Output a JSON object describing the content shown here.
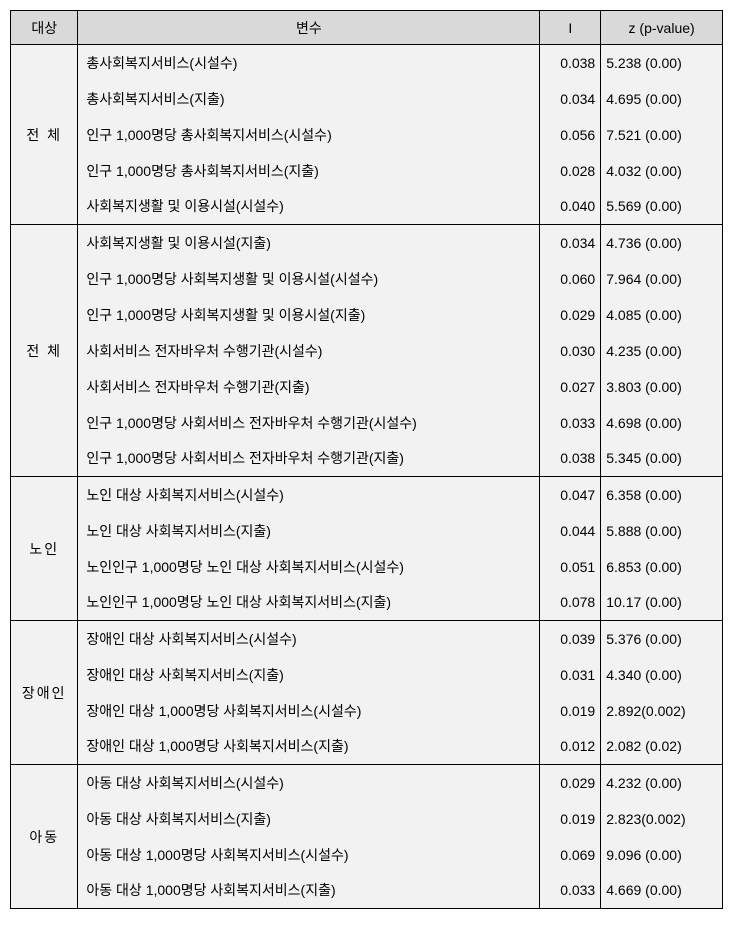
{
  "headers": {
    "target": "대상",
    "variable": "변수",
    "i": "I",
    "z": "z (p-value)"
  },
  "groups": [
    {
      "target": "전 체",
      "rows": [
        {
          "variable": "총사회복지서비스(시설수)",
          "i": "0.038",
          "z": "5.238 (0.00)"
        },
        {
          "variable": "총사회복지서비스(지출)",
          "i": "0.034",
          "z": "4.695 (0.00)"
        },
        {
          "variable": "인구 1,000명당 총사회복지서비스(시설수)",
          "i": "0.056",
          "z": "7.521 (0.00)"
        },
        {
          "variable": "인구 1,000명당 총사회복지서비스(지출)",
          "i": "0.028",
          "z": "4.032 (0.00)"
        },
        {
          "variable": "사회복지생활 및 이용시설(시설수)",
          "i": "0.040",
          "z": "5.569 (0.00)"
        }
      ]
    },
    {
      "target": "전 체",
      "rows": [
        {
          "variable": "사회복지생활 및 이용시설(지출)",
          "i": "0.034",
          "z": "4.736 (0.00)"
        },
        {
          "variable": "인구 1,000명당 사회복지생활 및 이용시설(시설수)",
          "i": "0.060",
          "z": "7.964 (0.00)"
        },
        {
          "variable": "인구 1,000명당 사회복지생활 및 이용시설(지출)",
          "i": "0.029",
          "z": "4.085 (0.00)"
        },
        {
          "variable": "사회서비스 전자바우처 수행기관(시설수)",
          "i": "0.030",
          "z": "4.235 (0.00)"
        },
        {
          "variable": "사회서비스 전자바우처 수행기관(지출)",
          "i": "0.027",
          "z": "3.803 (0.00)"
        },
        {
          "variable": "인구 1,000명당 사회서비스 전자바우처 수행기관(시설수)",
          "i": "0.033",
          "z": "4.698 (0.00)"
        },
        {
          "variable": "인구 1,000명당 사회서비스 전자바우처 수행기관(지출)",
          "i": "0.038",
          "z": "5.345 (0.00)"
        }
      ]
    },
    {
      "target": "노인",
      "rows": [
        {
          "variable": "노인 대상 사회복지서비스(시설수)",
          "i": "0.047",
          "z": "6.358 (0.00)"
        },
        {
          "variable": "노인 대상 사회복지서비스(지출)",
          "i": "0.044",
          "z": "5.888 (0.00)"
        },
        {
          "variable": "노인인구 1,000명당 노인 대상 사회복지서비스(시설수)",
          "i": "0.051",
          "z": "6.853 (0.00)"
        },
        {
          "variable": "노인인구 1,000명당 노인 대상 사회복지서비스(지출)",
          "i": "0.078",
          "z": "10.17 (0.00)"
        }
      ]
    },
    {
      "target": "장애인",
      "rows": [
        {
          "variable": "장애인 대상 사회복지서비스(시설수)",
          "i": "0.039",
          "z": "5.376 (0.00)"
        },
        {
          "variable": "장애인 대상 사회복지서비스(지출)",
          "i": "0.031",
          "z": "4.340 (0.00)"
        },
        {
          "variable": "장애인 대상 1,000명당 사회복지서비스(시설수)",
          "i": "0.019",
          "z": "2.892(0.002)"
        },
        {
          "variable": "장애인 대상 1,000명당 사회복지서비스(지출)",
          "i": "0.012",
          "z": "2.082 (0.02)"
        }
      ]
    },
    {
      "target": "아동",
      "rows": [
        {
          "variable": "아동 대상 사회복지서비스(시설수)",
          "i": "0.029",
          "z": "4.232 (0.00)"
        },
        {
          "variable": "아동 대상 사회복지서비스(지출)",
          "i": "0.019",
          "z": "2.823(0.002)"
        },
        {
          "variable": "아동 대상 1,000명당 사회복지서비스(시설수)",
          "i": "0.069",
          "z": "9.096 (0.00)"
        },
        {
          "variable": "아동 대상 1,000명당 사회복지서비스(지출)",
          "i": "0.033",
          "z": "4.669 (0.00)"
        }
      ]
    }
  ]
}
